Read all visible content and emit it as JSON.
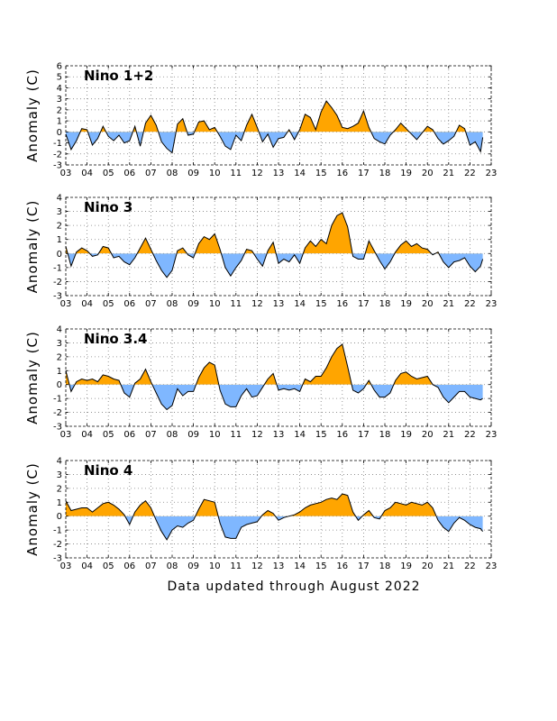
{
  "footer": "Data updated through August 2022",
  "colors": {
    "positive": "#ffa500",
    "negative": "#7fb7ff",
    "line": "#000000",
    "grid": "#808080"
  },
  "chart_data": [
    {
      "type": "area",
      "title": "Nino 1+2",
      "ylabel": "Anomaly (C)",
      "xlabel": "",
      "xlim": [
        2003,
        2023
      ],
      "ylim": [
        -3,
        6
      ],
      "xticks": [
        2003,
        2004,
        2005,
        2006,
        2007,
        2008,
        2009,
        2010,
        2011,
        2012,
        2013,
        2014,
        2015,
        2016,
        2017,
        2018,
        2019,
        2020,
        2021,
        2022,
        2023
      ],
      "xtick_labels": [
        "03",
        "04",
        "05",
        "06",
        "07",
        "08",
        "09",
        "10",
        "11",
        "12",
        "13",
        "14",
        "15",
        "16",
        "17",
        "18",
        "19",
        "20",
        "21",
        "22",
        "23"
      ],
      "yticks": [
        -3,
        -2,
        -1,
        0,
        1,
        2,
        3,
        4,
        5,
        6
      ],
      "ytick_labels": [
        "-3",
        "-2",
        "-1",
        "0",
        "1",
        "2",
        "3",
        "4",
        "5",
        "6"
      ],
      "grid": true,
      "x": [
        2003.0,
        2003.25,
        2003.5,
        2003.75,
        2004.0,
        2004.25,
        2004.5,
        2004.75,
        2005.0,
        2005.25,
        2005.5,
        2005.75,
        2006.0,
        2006.25,
        2006.5,
        2006.75,
        2007.0,
        2007.25,
        2007.5,
        2007.75,
        2008.0,
        2008.25,
        2008.5,
        2008.75,
        2009.0,
        2009.25,
        2009.5,
        2009.75,
        2010.0,
        2010.25,
        2010.5,
        2010.75,
        2011.0,
        2011.25,
        2011.5,
        2011.75,
        2012.0,
        2012.25,
        2012.5,
        2012.75,
        2013.0,
        2013.25,
        2013.5,
        2013.75,
        2014.0,
        2014.25,
        2014.5,
        2014.75,
        2015.0,
        2015.25,
        2015.5,
        2015.75,
        2016.0,
        2016.25,
        2016.5,
        2016.75,
        2017.0,
        2017.25,
        2017.5,
        2017.75,
        2018.0,
        2018.25,
        2018.5,
        2018.75,
        2019.0,
        2019.25,
        2019.5,
        2019.75,
        2020.0,
        2020.25,
        2020.5,
        2020.75,
        2021.0,
        2021.25,
        2021.5,
        2021.75,
        2022.0,
        2022.25,
        2022.5,
        2022.6
      ],
      "values": [
        -0.2,
        -1.6,
        -0.8,
        0.3,
        0.2,
        -1.2,
        -0.6,
        0.5,
        -0.4,
        -0.8,
        -0.3,
        -1.0,
        -0.8,
        0.5,
        -1.3,
        0.8,
        1.5,
        0.6,
        -0.9,
        -1.5,
        -1.9,
        0.7,
        1.2,
        -0.3,
        -0.2,
        0.9,
        1.0,
        0.2,
        0.4,
        -0.4,
        -1.3,
        -1.6,
        -0.3,
        -0.8,
        0.6,
        1.6,
        0.4,
        -0.9,
        -0.2,
        -1.4,
        -0.6,
        -0.5,
        0.2,
        -0.7,
        0.2,
        1.6,
        1.3,
        0.2,
        1.8,
        2.8,
        2.2,
        1.5,
        0.4,
        0.3,
        0.5,
        0.8,
        1.9,
        0.4,
        -0.6,
        -0.9,
        -1.1,
        -0.3,
        0.2,
        0.8,
        0.3,
        -0.2,
        -0.7,
        -0.1,
        0.5,
        0.2,
        -0.6,
        -1.1,
        -0.8,
        -0.4,
        0.6,
        0.3,
        -1.2,
        -0.9,
        -1.8,
        -0.5
      ]
    },
    {
      "type": "area",
      "title": "Nino 3",
      "ylabel": "Anomaly (C)",
      "xlabel": "",
      "xlim": [
        2003,
        2023
      ],
      "ylim": [
        -3,
        4
      ],
      "xticks": [
        2003,
        2004,
        2005,
        2006,
        2007,
        2008,
        2009,
        2010,
        2011,
        2012,
        2013,
        2014,
        2015,
        2016,
        2017,
        2018,
        2019,
        2020,
        2021,
        2022,
        2023
      ],
      "xtick_labels": [
        "03",
        "04",
        "05",
        "06",
        "07",
        "08",
        "09",
        "10",
        "11",
        "12",
        "13",
        "14",
        "15",
        "16",
        "17",
        "18",
        "19",
        "20",
        "21",
        "22",
        "23"
      ],
      "yticks": [
        -3,
        -2,
        -1,
        0,
        1,
        2,
        3,
        4
      ],
      "ytick_labels": [
        "-3",
        "-2",
        "-1",
        "0",
        "1",
        "2",
        "3",
        "4"
      ],
      "grid": true,
      "x": [
        2003.0,
        2003.25,
        2003.5,
        2003.75,
        2004.0,
        2004.25,
        2004.5,
        2004.75,
        2005.0,
        2005.25,
        2005.5,
        2005.75,
        2006.0,
        2006.25,
        2006.5,
        2006.75,
        2007.0,
        2007.25,
        2007.5,
        2007.75,
        2008.0,
        2008.25,
        2008.5,
        2008.75,
        2009.0,
        2009.25,
        2009.5,
        2009.75,
        2010.0,
        2010.25,
        2010.5,
        2010.75,
        2011.0,
        2011.25,
        2011.5,
        2011.75,
        2012.0,
        2012.25,
        2012.5,
        2012.75,
        2013.0,
        2013.25,
        2013.5,
        2013.75,
        2014.0,
        2014.25,
        2014.5,
        2014.75,
        2015.0,
        2015.25,
        2015.5,
        2015.75,
        2016.0,
        2016.25,
        2016.5,
        2016.75,
        2017.0,
        2017.25,
        2017.5,
        2017.75,
        2018.0,
        2018.25,
        2018.5,
        2018.75,
        2019.0,
        2019.25,
        2019.5,
        2019.75,
        2020.0,
        2020.25,
        2020.5,
        2020.75,
        2021.0,
        2021.25,
        2021.5,
        2021.75,
        2022.0,
        2022.25,
        2022.5,
        2022.6
      ],
      "values": [
        0.5,
        -0.9,
        0.1,
        0.4,
        0.2,
        -0.2,
        -0.1,
        0.5,
        0.4,
        -0.3,
        -0.2,
        -0.6,
        -0.8,
        -0.3,
        0.4,
        1.1,
        0.3,
        -0.5,
        -1.2,
        -1.7,
        -1.2,
        0.2,
        0.4,
        -0.1,
        -0.3,
        0.7,
        1.2,
        1.0,
        1.4,
        0.3,
        -1.0,
        -1.6,
        -1.0,
        -0.5,
        0.3,
        0.2,
        -0.4,
        -0.9,
        0.2,
        0.8,
        -0.7,
        -0.4,
        -0.6,
        -0.1,
        -0.7,
        0.4,
        0.9,
        0.5,
        1.0,
        0.7,
        2.0,
        2.7,
        2.9,
        1.9,
        -0.2,
        -0.4,
        -0.4,
        0.9,
        0.2,
        -0.5,
        -1.1,
        -0.6,
        0.1,
        0.6,
        0.9,
        0.5,
        0.7,
        0.4,
        0.3,
        -0.1,
        0.1,
        -0.6,
        -1.0,
        -0.6,
        -0.5,
        -0.3,
        -0.9,
        -1.3,
        -0.9,
        -0.4
      ]
    },
    {
      "type": "area",
      "title": "Nino 3.4",
      "ylabel": "Anomaly (C)",
      "xlabel": "",
      "xlim": [
        2003,
        2023
      ],
      "ylim": [
        -3,
        4
      ],
      "xticks": [
        2003,
        2004,
        2005,
        2006,
        2007,
        2008,
        2009,
        2010,
        2011,
        2012,
        2013,
        2014,
        2015,
        2016,
        2017,
        2018,
        2019,
        2020,
        2021,
        2022,
        2023
      ],
      "xtick_labels": [
        "03",
        "04",
        "05",
        "06",
        "07",
        "08",
        "09",
        "10",
        "11",
        "12",
        "13",
        "14",
        "15",
        "16",
        "17",
        "18",
        "19",
        "20",
        "21",
        "22",
        "23"
      ],
      "yticks": [
        -3,
        -2,
        -1,
        0,
        1,
        2,
        3,
        4
      ],
      "ytick_labels": [
        "-3",
        "-2",
        "-1",
        "0",
        "1",
        "2",
        "3",
        "4"
      ],
      "grid": true,
      "x": [
        2003.0,
        2003.25,
        2003.5,
        2003.75,
        2004.0,
        2004.25,
        2004.5,
        2004.75,
        2005.0,
        2005.25,
        2005.5,
        2005.75,
        2006.0,
        2006.25,
        2006.5,
        2006.75,
        2007.0,
        2007.25,
        2007.5,
        2007.75,
        2008.0,
        2008.25,
        2008.5,
        2008.75,
        2009.0,
        2009.25,
        2009.5,
        2009.75,
        2010.0,
        2010.25,
        2010.5,
        2010.75,
        2011.0,
        2011.25,
        2011.5,
        2011.75,
        2012.0,
        2012.25,
        2012.5,
        2012.75,
        2013.0,
        2013.25,
        2013.5,
        2013.75,
        2014.0,
        2014.25,
        2014.5,
        2014.75,
        2015.0,
        2015.25,
        2015.5,
        2015.75,
        2016.0,
        2016.25,
        2016.5,
        2016.75,
        2017.0,
        2017.25,
        2017.5,
        2017.75,
        2018.0,
        2018.25,
        2018.5,
        2018.75,
        2019.0,
        2019.25,
        2019.5,
        2019.75,
        2020.0,
        2020.25,
        2020.5,
        2020.75,
        2021.0,
        2021.25,
        2021.5,
        2021.75,
        2022.0,
        2022.25,
        2022.5,
        2022.6
      ],
      "values": [
        1.0,
        -0.5,
        0.2,
        0.4,
        0.3,
        0.4,
        0.2,
        0.7,
        0.6,
        0.4,
        0.3,
        -0.6,
        -0.9,
        0.1,
        0.4,
        1.1,
        0.2,
        -0.6,
        -1.4,
        -1.8,
        -1.5,
        -0.3,
        -0.8,
        -0.5,
        -0.5,
        0.5,
        1.2,
        1.6,
        1.4,
        -0.4,
        -1.4,
        -1.6,
        -1.6,
        -0.8,
        -0.3,
        -0.9,
        -0.8,
        -0.2,
        0.4,
        0.8,
        -0.4,
        -0.3,
        -0.4,
        -0.3,
        -0.5,
        0.4,
        0.2,
        0.6,
        0.6,
        1.2,
        2.0,
        2.6,
        2.9,
        1.3,
        -0.4,
        -0.6,
        -0.3,
        0.3,
        -0.4,
        -0.9,
        -0.9,
        -0.6,
        0.3,
        0.8,
        0.9,
        0.6,
        0.4,
        0.5,
        0.6,
        0.0,
        -0.2,
        -0.9,
        -1.3,
        -0.9,
        -0.5,
        -0.5,
        -0.9,
        -1.0,
        -1.1,
        -1.0
      ]
    },
    {
      "type": "area",
      "title": "Nino 4",
      "ylabel": "Anomaly (C)",
      "xlabel": "",
      "xlim": [
        2003,
        2023
      ],
      "ylim": [
        -3,
        4
      ],
      "xticks": [
        2003,
        2004,
        2005,
        2006,
        2007,
        2008,
        2009,
        2010,
        2011,
        2012,
        2013,
        2014,
        2015,
        2016,
        2017,
        2018,
        2019,
        2020,
        2021,
        2022,
        2023
      ],
      "xtick_labels": [
        "03",
        "04",
        "05",
        "06",
        "07",
        "08",
        "09",
        "10",
        "11",
        "12",
        "13",
        "14",
        "15",
        "16",
        "17",
        "18",
        "19",
        "20",
        "21",
        "22",
        "23"
      ],
      "yticks": [
        -3,
        -2,
        -1,
        0,
        1,
        2,
        3,
        4
      ],
      "ytick_labels": [
        "-3",
        "-2",
        "-1",
        "0",
        "1",
        "2",
        "3",
        "4"
      ],
      "grid": true,
      "x": [
        2003.0,
        2003.25,
        2003.5,
        2003.75,
        2004.0,
        2004.25,
        2004.5,
        2004.75,
        2005.0,
        2005.25,
        2005.5,
        2005.75,
        2006.0,
        2006.25,
        2006.5,
        2006.75,
        2007.0,
        2007.25,
        2007.5,
        2007.75,
        2008.0,
        2008.25,
        2008.5,
        2008.75,
        2009.0,
        2009.25,
        2009.5,
        2009.75,
        2010.0,
        2010.25,
        2010.5,
        2010.75,
        2011.0,
        2011.25,
        2011.5,
        2011.75,
        2012.0,
        2012.25,
        2012.5,
        2012.75,
        2013.0,
        2013.25,
        2013.5,
        2013.75,
        2014.0,
        2014.25,
        2014.5,
        2014.75,
        2015.0,
        2015.25,
        2015.5,
        2015.75,
        2016.0,
        2016.25,
        2016.5,
        2016.75,
        2017.0,
        2017.25,
        2017.5,
        2017.75,
        2018.0,
        2018.25,
        2018.5,
        2018.75,
        2019.0,
        2019.25,
        2019.5,
        2019.75,
        2020.0,
        2020.25,
        2020.5,
        2020.75,
        2021.0,
        2021.25,
        2021.5,
        2021.75,
        2022.0,
        2022.25,
        2022.5,
        2022.6
      ],
      "values": [
        1.1,
        0.4,
        0.5,
        0.6,
        0.6,
        0.3,
        0.6,
        0.9,
        1.0,
        0.8,
        0.5,
        0.1,
        -0.6,
        0.3,
        0.8,
        1.1,
        0.6,
        -0.3,
        -1.1,
        -1.7,
        -1.0,
        -0.7,
        -0.8,
        -0.5,
        -0.3,
        0.5,
        1.2,
        1.1,
        1.0,
        -0.5,
        -1.5,
        -1.6,
        -1.6,
        -0.8,
        -0.6,
        -0.5,
        -0.4,
        0.1,
        0.4,
        0.2,
        -0.3,
        -0.1,
        0.0,
        0.1,
        0.3,
        0.6,
        0.8,
        0.9,
        1.0,
        1.2,
        1.3,
        1.2,
        1.6,
        1.5,
        0.3,
        -0.3,
        0.1,
        0.4,
        -0.1,
        -0.2,
        0.4,
        0.6,
        1.0,
        0.9,
        0.8,
        1.0,
        0.9,
        0.8,
        1.0,
        0.6,
        -0.3,
        -0.8,
        -1.1,
        -0.5,
        -0.1,
        -0.3,
        -0.6,
        -0.8,
        -0.9,
        -1.1
      ]
    }
  ]
}
